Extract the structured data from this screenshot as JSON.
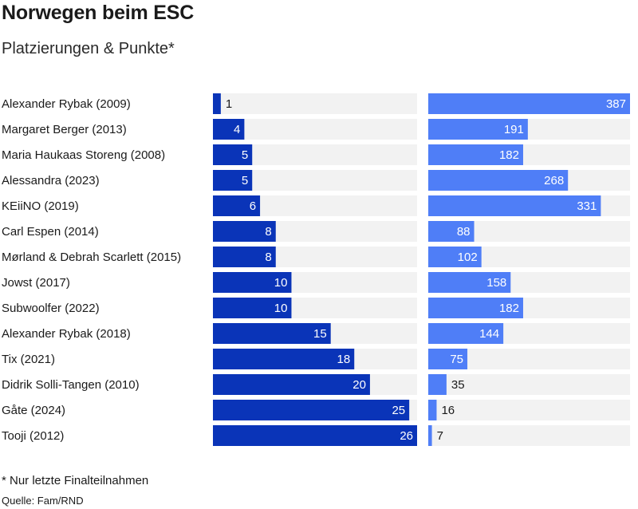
{
  "title": "Norwegen beim ESC",
  "subtitle": "Platzierungen & Punkte*",
  "footnote": "* Nur letzte Finalteilnahmen",
  "source": "Quelle: Fam/RND",
  "colors": {
    "placement_bar": "#0a34b8",
    "points_bar": "#4f7ef7",
    "track": "#f2f2f2",
    "inside_text": "#ffffff",
    "outside_text": "#1a1a1a"
  },
  "chart_data": {
    "type": "bar",
    "orientation": "horizontal",
    "categories": [
      "Alexander Rybak (2009)",
      "Margaret Berger (2013)",
      "Maria Haukaas Storeng (2008)",
      "Alessandra (2023)",
      "KEiiNO (2019)",
      "Carl Espen (2014)",
      "Mørland & Debrah Scarlett (2015)",
      "Jowst (2017)",
      "Subwoolfer (2022)",
      "Alexander Rybak (2018)",
      "Tix (2021)",
      "Didrik Solli-Tangen (2010)",
      "Gåte (2024)",
      "Tooji (2012)"
    ],
    "series": [
      {
        "key": "placement",
        "values": [
          1,
          4,
          5,
          5,
          6,
          8,
          8,
          10,
          10,
          15,
          18,
          20,
          25,
          26
        ],
        "xlim": [
          0,
          26
        ]
      },
      {
        "key": "points",
        "values": [
          387,
          191,
          182,
          268,
          331,
          88,
          102,
          158,
          182,
          144,
          75,
          35,
          16,
          7
        ],
        "xlim": [
          0,
          387
        ]
      }
    ]
  }
}
